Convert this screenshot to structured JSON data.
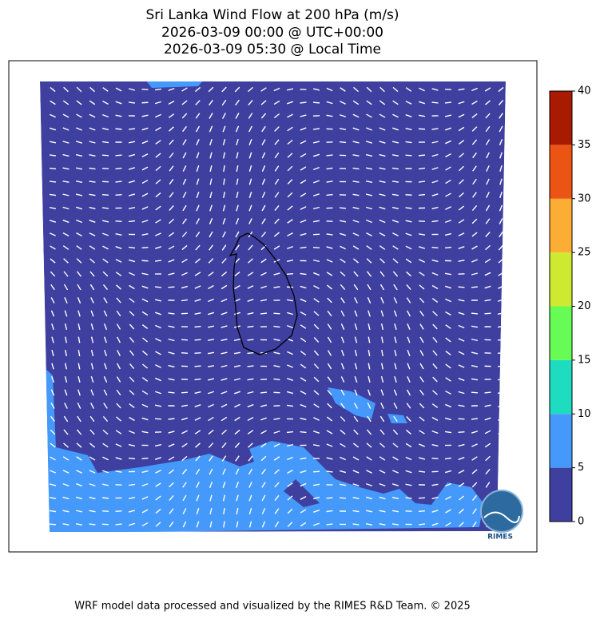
{
  "title": [
    "Sri Lanka Wind Flow at 200 hPa (m/s)",
    "2026-03-09 00:00 @ UTC+00:00",
    "2026-03-09 05:30 @ Local Time"
  ],
  "colorbar": {
    "ticks": [
      0,
      5,
      10,
      15,
      20,
      25,
      30,
      35,
      40
    ],
    "colors": [
      "#3e3f9f",
      "#4499fb",
      "#1edcc0",
      "#66fc55",
      "#cdea31",
      "#fcad33",
      "#ec5413",
      "#a91a02"
    ]
  },
  "logo": "RIMES",
  "footer": "WRF model data processed and visualized by the RIMES R&D Team. © 2025"
}
